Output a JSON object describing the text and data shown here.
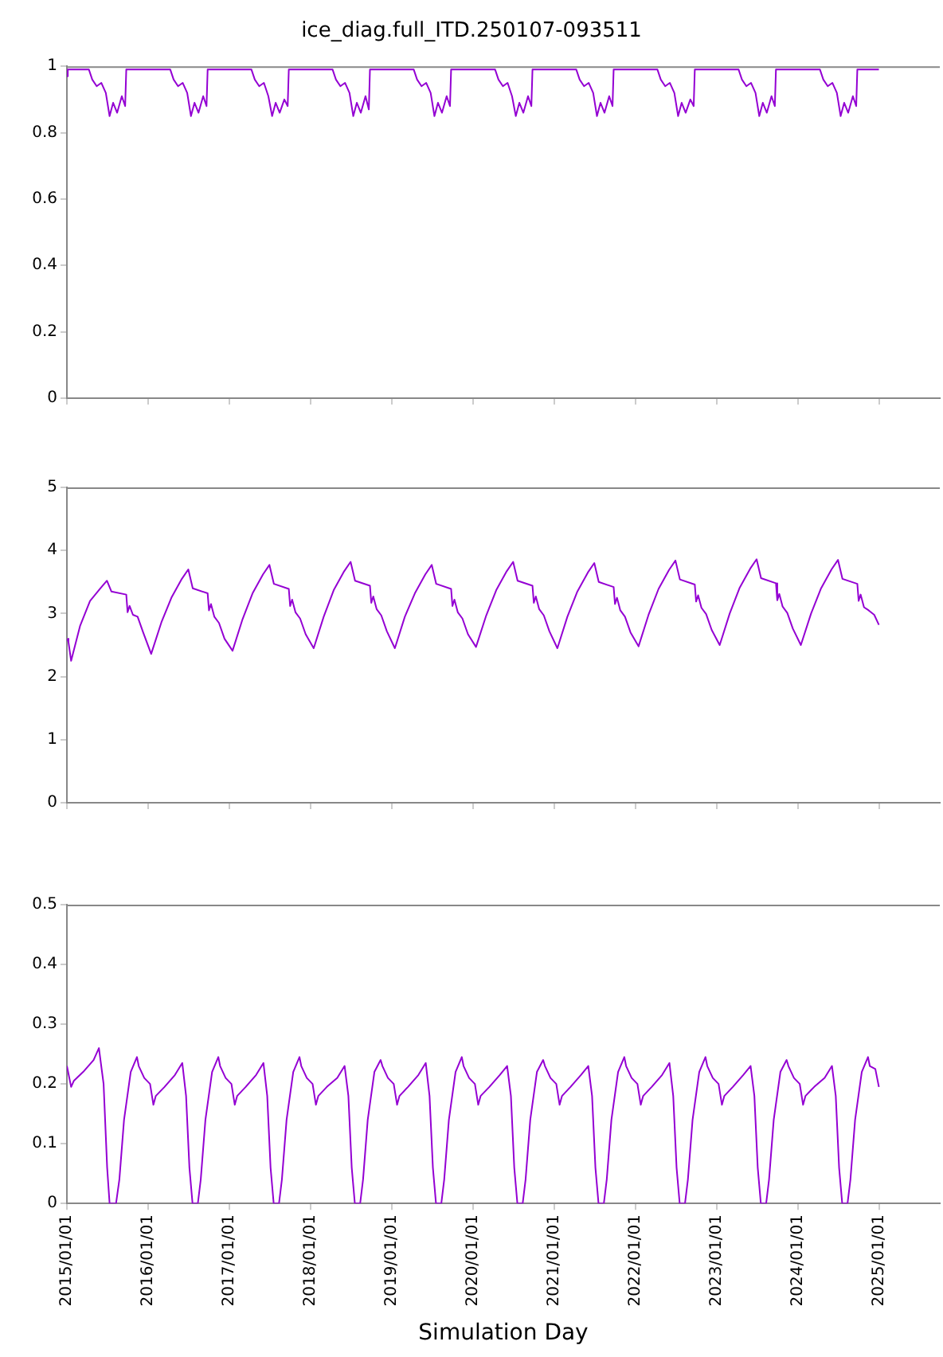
{
  "chart_data": [
    {
      "type": "line",
      "title": "ice_diag.full_ITD.250107-093511",
      "color": "#9400d3",
      "tick_labels": "y",
      "xlim": [
        "2015-01-01",
        "2025-10-01"
      ],
      "xticks": [
        {
          "value": "2015-01-01",
          "label": null
        },
        {
          "value": "2016-01-01",
          "label": null
        },
        {
          "value": "2017-01-01",
          "label": null
        },
        {
          "value": "2018-01-01",
          "label": null
        },
        {
          "value": "2019-01-01",
          "label": null
        },
        {
          "value": "2020-01-01",
          "label": null
        },
        {
          "value": "2021-01-01",
          "label": null
        },
        {
          "value": "2022-01-01",
          "label": null
        },
        {
          "value": "2023-01-01",
          "label": null
        },
        {
          "value": "2024-01-01",
          "label": null
        },
        {
          "value": "2025-01-01",
          "label": null
        }
      ],
      "ylim": [
        0,
        1
      ],
      "yticks": [
        0,
        0.2,
        0.4,
        0.6,
        0.8,
        1
      ],
      "x": [
        "2015-01-01",
        "2015-01-05",
        "2015-04-10",
        "2015-04-25",
        "2015-05-15",
        "2015-06-05",
        "2015-06-25",
        "2015-07-12",
        "2015-07-28",
        "2015-08-15",
        "2015-09-05",
        "2015-09-20",
        "2015-09-25",
        "2016-01-05",
        "2016-04-10",
        "2016-04-25",
        "2016-05-15",
        "2016-06-05",
        "2016-06-25",
        "2016-07-12",
        "2016-07-28",
        "2016-08-15",
        "2016-09-05",
        "2016-09-20",
        "2016-09-25",
        "2017-01-05",
        "2017-04-10",
        "2017-04-25",
        "2017-05-15",
        "2017-06-05",
        "2017-06-25",
        "2017-07-12",
        "2017-07-28",
        "2017-08-15",
        "2017-09-05",
        "2017-09-20",
        "2017-09-25",
        "2018-01-05",
        "2018-04-10",
        "2018-04-25",
        "2018-05-15",
        "2018-06-05",
        "2018-06-25",
        "2018-07-12",
        "2018-07-28",
        "2018-08-15",
        "2018-09-05",
        "2018-09-20",
        "2018-09-25",
        "2019-01-05",
        "2019-04-10",
        "2019-04-25",
        "2019-05-15",
        "2019-06-05",
        "2019-06-25",
        "2019-07-12",
        "2019-07-28",
        "2019-08-15",
        "2019-09-05",
        "2019-09-20",
        "2019-09-25",
        "2020-01-05",
        "2020-04-10",
        "2020-04-25",
        "2020-05-15",
        "2020-06-05",
        "2020-06-25",
        "2020-07-12",
        "2020-07-28",
        "2020-08-15",
        "2020-09-05",
        "2020-09-20",
        "2020-09-25",
        "2021-01-05",
        "2021-04-10",
        "2021-04-25",
        "2021-05-15",
        "2021-06-05",
        "2021-06-25",
        "2021-07-12",
        "2021-07-28",
        "2021-08-15",
        "2021-09-05",
        "2021-09-20",
        "2021-09-25",
        "2022-01-05",
        "2022-04-10",
        "2022-04-25",
        "2022-05-15",
        "2022-06-05",
        "2022-06-25",
        "2022-07-12",
        "2022-07-28",
        "2022-08-15",
        "2022-09-05",
        "2022-09-20",
        "2022-09-25",
        "2023-01-05",
        "2023-04-10",
        "2023-04-25",
        "2023-05-15",
        "2023-06-05",
        "2023-06-25",
        "2023-07-12",
        "2023-07-28",
        "2023-08-15",
        "2023-09-05",
        "2023-09-20",
        "2023-09-25",
        "2024-01-05",
        "2024-04-10",
        "2024-04-25",
        "2024-05-15",
        "2024-06-05",
        "2024-06-25",
        "2024-07-12",
        "2024-07-28",
        "2024-08-15",
        "2024-09-05",
        "2024-09-20",
        "2024-09-25",
        "2024-12-31"
      ],
      "values": [
        0.97,
        0.99,
        0.99,
        0.96,
        0.94,
        0.95,
        0.92,
        0.85,
        0.89,
        0.86,
        0.91,
        0.88,
        0.99,
        0.99,
        0.99,
        0.96,
        0.94,
        0.95,
        0.92,
        0.85,
        0.89,
        0.86,
        0.91,
        0.88,
        0.99,
        0.99,
        0.99,
        0.96,
        0.94,
        0.95,
        0.91,
        0.85,
        0.89,
        0.86,
        0.9,
        0.88,
        0.99,
        0.99,
        0.99,
        0.96,
        0.94,
        0.95,
        0.92,
        0.85,
        0.89,
        0.86,
        0.91,
        0.87,
        0.99,
        0.99,
        0.99,
        0.96,
        0.94,
        0.95,
        0.92,
        0.85,
        0.89,
        0.86,
        0.91,
        0.88,
        0.99,
        0.99,
        0.99,
        0.96,
        0.94,
        0.95,
        0.91,
        0.85,
        0.89,
        0.86,
        0.91,
        0.88,
        0.99,
        0.99,
        0.99,
        0.96,
        0.94,
        0.95,
        0.92,
        0.85,
        0.89,
        0.86,
        0.91,
        0.88,
        0.99,
        0.99,
        0.99,
        0.96,
        0.94,
        0.95,
        0.92,
        0.85,
        0.89,
        0.86,
        0.9,
        0.88,
        0.99,
        0.99,
        0.99,
        0.96,
        0.94,
        0.95,
        0.92,
        0.85,
        0.89,
        0.86,
        0.91,
        0.88,
        0.99,
        0.99,
        0.99,
        0.96,
        0.94,
        0.95,
        0.92,
        0.85,
        0.89,
        0.86,
        0.91,
        0.88,
        0.99,
        0.99
      ]
    },
    {
      "type": "line",
      "color": "#9400d3",
      "tick_labels": "y",
      "xlim": [
        "2015-01-01",
        "2025-10-01"
      ],
      "xticks": [
        {
          "value": "2015-01-01",
          "label": null
        },
        {
          "value": "2016-01-01",
          "label": null
        },
        {
          "value": "2017-01-01",
          "label": null
        },
        {
          "value": "2018-01-01",
          "label": null
        },
        {
          "value": "2019-01-01",
          "label": null
        },
        {
          "value": "2020-01-01",
          "label": null
        },
        {
          "value": "2021-01-01",
          "label": null
        },
        {
          "value": "2022-01-01",
          "label": null
        },
        {
          "value": "2023-01-01",
          "label": null
        },
        {
          "value": "2024-01-01",
          "label": null
        },
        {
          "value": "2025-01-01",
          "label": null
        }
      ],
      "ylim": [
        0,
        5
      ],
      "yticks": [
        0,
        1,
        2,
        3,
        4,
        5
      ],
      "x": [
        "2015-01-01",
        "2015-01-08",
        "2015-01-20",
        "2015-03-01",
        "2015-04-15",
        "2015-06-01",
        "2015-06-30",
        "2015-07-20",
        "2015-09-25",
        "2015-10-01",
        "2015-10-10",
        "2015-10-25",
        "2015-11-15",
        "2015-12-10",
        "2016-01-15",
        "2016-03-01",
        "2016-04-15",
        "2016-06-01",
        "2016-06-30",
        "2016-07-20",
        "2016-09-25",
        "2016-10-01",
        "2016-10-10",
        "2016-10-25",
        "2016-11-15",
        "2016-12-10",
        "2017-01-15",
        "2017-03-01",
        "2017-04-15",
        "2017-06-01",
        "2017-06-30",
        "2017-07-20",
        "2017-09-25",
        "2017-10-01",
        "2017-10-10",
        "2017-10-25",
        "2017-11-15",
        "2017-12-10",
        "2018-01-15",
        "2018-03-01",
        "2018-04-15",
        "2018-06-01",
        "2018-06-30",
        "2018-07-20",
        "2018-09-25",
        "2018-10-01",
        "2018-10-10",
        "2018-10-25",
        "2018-11-15",
        "2018-12-10",
        "2019-01-15",
        "2019-03-01",
        "2019-04-15",
        "2019-06-01",
        "2019-06-30",
        "2019-07-20",
        "2019-09-25",
        "2019-10-01",
        "2019-10-10",
        "2019-10-25",
        "2019-11-15",
        "2019-12-10",
        "2020-01-15",
        "2020-03-01",
        "2020-04-15",
        "2020-06-01",
        "2020-06-30",
        "2020-07-20",
        "2020-09-25",
        "2020-10-01",
        "2020-10-10",
        "2020-10-25",
        "2020-11-15",
        "2020-12-10",
        "2021-01-15",
        "2021-03-01",
        "2021-04-15",
        "2021-06-01",
        "2021-06-30",
        "2021-07-20",
        "2021-09-25",
        "2021-10-01",
        "2021-10-10",
        "2021-10-25",
        "2021-11-15",
        "2021-12-10",
        "2022-01-15",
        "2022-03-01",
        "2022-04-15",
        "2022-06-01",
        "2022-06-30",
        "2022-07-20",
        "2022-09-25",
        "2022-10-01",
        "2022-10-10",
        "2022-10-25",
        "2022-11-15",
        "2022-12-10",
        "2023-01-15",
        "2023-03-01",
        "2023-04-15",
        "2023-06-01",
        "2023-06-30",
        "2023-07-20",
        "2023-09-25",
        "2023-10-01",
        "2023-10-10",
        "2023-10-25",
        "2023-11-15",
        "2023-12-10",
        "2024-01-15",
        "2024-03-01",
        "2024-04-15",
        "2024-06-01",
        "2024-06-30",
        "2024-07-20",
        "2024-09-25",
        "2024-10-01",
        "2024-10-10",
        "2024-10-25",
        "2024-11-15",
        "2024-12-10",
        "2024-12-31"
      ],
      "values": [
        2.6,
        2.55,
        2.25,
        2.8,
        3.2,
        3.4,
        3.52,
        3.35,
        3.3,
        3.02,
        3.12,
        2.98,
        2.95,
        2.7,
        2.36,
        2.86,
        3.25,
        3.55,
        3.7,
        3.4,
        3.32,
        3.05,
        3.15,
        2.95,
        2.85,
        2.6,
        2.41,
        2.91,
        3.32,
        3.62,
        3.77,
        3.47,
        3.39,
        3.12,
        3.22,
        3.02,
        2.92,
        2.67,
        2.45,
        2.95,
        3.37,
        3.67,
        3.82,
        3.52,
        3.44,
        3.17,
        3.27,
        3.07,
        2.97,
        2.72,
        2.45,
        2.95,
        3.32,
        3.62,
        3.77,
        3.47,
        3.39,
        3.12,
        3.22,
        3.02,
        2.92,
        2.67,
        2.47,
        2.97,
        3.37,
        3.67,
        3.82,
        3.52,
        3.44,
        3.17,
        3.27,
        3.07,
        2.97,
        2.72,
        2.45,
        2.95,
        3.35,
        3.65,
        3.8,
        3.5,
        3.42,
        3.15,
        3.25,
        3.05,
        2.95,
        2.7,
        2.48,
        2.98,
        3.39,
        3.69,
        3.84,
        3.54,
        3.46,
        3.19,
        3.29,
        3.09,
        2.99,
        2.74,
        2.5,
        3.0,
        3.41,
        3.71,
        3.86,
        3.56,
        3.48,
        3.21,
        3.31,
        3.11,
        3.01,
        2.76,
        2.5,
        3.0,
        3.4,
        3.7,
        3.85,
        3.55,
        3.47,
        3.2,
        3.3,
        3.1,
        3.05,
        2.98,
        2.82
      ]
    },
    {
      "type": "line",
      "color": "#9400d3",
      "xlabel": "Simulation Day",
      "xlim": [
        "2015-01-01",
        "2025-10-01"
      ],
      "xticks": [
        {
          "value": "2015-01-01",
          "label": "2015/01/01"
        },
        {
          "value": "2016-01-01",
          "label": "2016/01/01"
        },
        {
          "value": "2017-01-01",
          "label": "2017/01/01"
        },
        {
          "value": "2018-01-01",
          "label": "2018/01/01"
        },
        {
          "value": "2019-01-01",
          "label": "2019/01/01"
        },
        {
          "value": "2020-01-01",
          "label": "2020/01/01"
        },
        {
          "value": "2021-01-01",
          "label": "2021/01/01"
        },
        {
          "value": "2022-01-01",
          "label": "2022/01/01"
        },
        {
          "value": "2023-01-01",
          "label": "2023/01/01"
        },
        {
          "value": "2024-01-01",
          "label": "2024/01/01"
        },
        {
          "value": "2025-01-01",
          "label": "2025/01/01"
        }
      ],
      "ylim": [
        0,
        0.5
      ],
      "yticks": [
        0,
        0.1,
        0.2,
        0.3,
        0.4,
        0.5
      ],
      "x": [
        "2015-01-01",
        "2015-01-08",
        "2015-01-20",
        "2015-02-01",
        "2015-03-15",
        "2015-05-01",
        "2015-05-25",
        "2015-06-15",
        "2015-07-01",
        "2015-07-12",
        "2015-08-10",
        "2015-08-25",
        "2015-09-15",
        "2015-10-15",
        "2015-11-12",
        "2015-11-20",
        "2015-12-15",
        "2016-01-10",
        "2016-01-25",
        "2016-02-05",
        "2016-03-15",
        "2016-05-01",
        "2016-06-03",
        "2016-06-20",
        "2016-07-05",
        "2016-07-19",
        "2016-08-12",
        "2016-08-25",
        "2016-09-15",
        "2016-10-15",
        "2016-11-12",
        "2016-11-20",
        "2016-12-15",
        "2017-01-10",
        "2017-01-25",
        "2017-02-05",
        "2017-03-15",
        "2017-05-01",
        "2017-06-03",
        "2017-06-20",
        "2017-07-05",
        "2017-07-19",
        "2017-08-12",
        "2017-08-25",
        "2017-09-15",
        "2017-10-15",
        "2017-11-12",
        "2017-11-20",
        "2017-12-15",
        "2018-01-10",
        "2018-01-25",
        "2018-02-05",
        "2018-03-15",
        "2018-05-01",
        "2018-06-03",
        "2018-06-20",
        "2018-07-05",
        "2018-07-19",
        "2018-08-12",
        "2018-08-25",
        "2018-09-15",
        "2018-10-15",
        "2018-11-12",
        "2018-11-20",
        "2018-12-15",
        "2019-01-10",
        "2019-01-25",
        "2019-02-05",
        "2019-03-15",
        "2019-05-01",
        "2019-06-03",
        "2019-06-20",
        "2019-07-05",
        "2019-07-19",
        "2019-08-12",
        "2019-08-25",
        "2019-09-15",
        "2019-10-15",
        "2019-11-12",
        "2019-11-20",
        "2019-12-15",
        "2020-01-10",
        "2020-01-25",
        "2020-02-05",
        "2020-03-15",
        "2020-05-01",
        "2020-06-03",
        "2020-06-20",
        "2020-07-05",
        "2020-07-19",
        "2020-08-12",
        "2020-08-25",
        "2020-09-15",
        "2020-10-15",
        "2020-11-12",
        "2020-11-20",
        "2020-12-15",
        "2021-01-10",
        "2021-01-25",
        "2021-02-05",
        "2021-03-15",
        "2021-05-01",
        "2021-06-03",
        "2021-06-20",
        "2021-07-05",
        "2021-07-19",
        "2021-08-12",
        "2021-08-25",
        "2021-09-15",
        "2021-10-15",
        "2021-11-12",
        "2021-11-20",
        "2021-12-15",
        "2022-01-10",
        "2022-01-25",
        "2022-02-05",
        "2022-03-15",
        "2022-05-01",
        "2022-06-03",
        "2022-06-20",
        "2022-07-05",
        "2022-07-19",
        "2022-08-12",
        "2022-08-25",
        "2022-09-15",
        "2022-10-15",
        "2022-11-12",
        "2022-11-20",
        "2022-12-15",
        "2023-01-10",
        "2023-01-25",
        "2023-02-05",
        "2023-03-15",
        "2023-05-01",
        "2023-06-03",
        "2023-06-20",
        "2023-07-05",
        "2023-07-19",
        "2023-08-12",
        "2023-08-25",
        "2023-09-15",
        "2023-10-15",
        "2023-11-12",
        "2023-11-20",
        "2023-12-15",
        "2024-01-10",
        "2024-01-25",
        "2024-02-05",
        "2024-03-15",
        "2024-05-01",
        "2024-06-03",
        "2024-06-20",
        "2024-07-05",
        "2024-07-19",
        "2024-08-12",
        "2024-08-25",
        "2024-09-15",
        "2024-10-15",
        "2024-11-12",
        "2024-11-20",
        "2024-12-15",
        "2024-12-31"
      ],
      "values": [
        0.23,
        0.23,
        0.195,
        0.205,
        0.22,
        0.24,
        0.26,
        0.2,
        0.06,
        0,
        0,
        0.04,
        0.14,
        0.22,
        0.245,
        0.23,
        0.21,
        0.2,
        0.165,
        0.18,
        0.195,
        0.215,
        0.235,
        0.18,
        0.06,
        0,
        0,
        0.04,
        0.14,
        0.22,
        0.245,
        0.23,
        0.21,
        0.2,
        0.165,
        0.18,
        0.195,
        0.215,
        0.235,
        0.18,
        0.06,
        0,
        0,
        0.04,
        0.14,
        0.22,
        0.245,
        0.23,
        0.21,
        0.2,
        0.165,
        0.18,
        0.195,
        0.21,
        0.23,
        0.18,
        0.06,
        0,
        0,
        0.04,
        0.14,
        0.22,
        0.24,
        0.23,
        0.21,
        0.2,
        0.165,
        0.18,
        0.195,
        0.215,
        0.235,
        0.18,
        0.06,
        0,
        0,
        0.04,
        0.14,
        0.22,
        0.245,
        0.23,
        0.21,
        0.2,
        0.165,
        0.18,
        0.195,
        0.215,
        0.23,
        0.18,
        0.06,
        0,
        0,
        0.04,
        0.14,
        0.22,
        0.24,
        0.23,
        0.21,
        0.2,
        0.165,
        0.18,
        0.195,
        0.215,
        0.23,
        0.18,
        0.06,
        0,
        0,
        0.04,
        0.14,
        0.22,
        0.245,
        0.23,
        0.21,
        0.2,
        0.165,
        0.18,
        0.195,
        0.215,
        0.235,
        0.18,
        0.06,
        0,
        0,
        0.04,
        0.14,
        0.22,
        0.245,
        0.23,
        0.21,
        0.2,
        0.165,
        0.18,
        0.195,
        0.215,
        0.23,
        0.18,
        0.06,
        0,
        0,
        0.04,
        0.14,
        0.22,
        0.24,
        0.23,
        0.21,
        0.2,
        0.165,
        0.18,
        0.195,
        0.21,
        0.23,
        0.18,
        0.06,
        0,
        0,
        0.04,
        0.14,
        0.22,
        0.245,
        0.23,
        0.225,
        0.195
      ]
    }
  ]
}
